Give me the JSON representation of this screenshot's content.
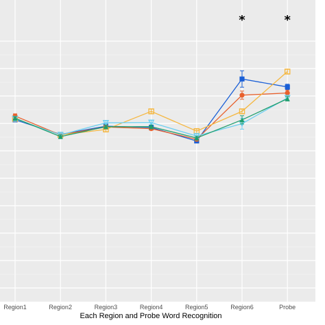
{
  "chart_data": {
    "type": "line",
    "xlabel": "Each Region and Probe Word Recognition",
    "ylabel": "",
    "categories": [
      "Region1",
      "Region2",
      "Region3",
      "Region4",
      "Region5",
      "Region6",
      "Probe"
    ],
    "ylim": [
      0,
      1
    ],
    "y_hidden_ticks": [
      0.1,
      0.2,
      0.3,
      0.4,
      0.5,
      0.6,
      0.7,
      0.8,
      0.9,
      1.0
    ],
    "grid": true,
    "legend": "none",
    "annotations": [
      {
        "category": "Region6",
        "text": "*"
      },
      {
        "category": "Probe",
        "text": "*"
      }
    ],
    "series": [
      {
        "color": "#1a5fd6",
        "marker": "square",
        "values": [
          0.713,
          0.66,
          0.69,
          0.685,
          0.636,
          0.862,
          0.833
        ],
        "errors": [
          0.006,
          0.006,
          0.008,
          0.006,
          0.006,
          0.03,
          0.01
        ]
      },
      {
        "color": "#e8602c",
        "marker": "circle",
        "values": [
          0.727,
          0.658,
          0.687,
          0.681,
          0.642,
          0.803,
          0.811
        ],
        "errors": [
          0.008,
          0.006,
          0.008,
          0.006,
          0.006,
          0.015,
          0.01
        ]
      },
      {
        "color": "#f5b740",
        "marker": "square-open",
        "values": [
          0.717,
          0.658,
          0.678,
          0.744,
          0.672,
          0.744,
          0.889
        ],
        "errors": [
          0.008,
          0.006,
          0.008,
          0.008,
          0.008,
          0.008,
          0.008
        ]
      },
      {
        "color": "#6dcff0",
        "marker": "triangle-down-open",
        "values": [
          0.717,
          0.658,
          0.702,
          0.703,
          0.654,
          0.699,
          0.793
        ],
        "errors": [
          0.008,
          0.006,
          0.008,
          0.008,
          0.008,
          0.02,
          0.01
        ]
      },
      {
        "color": "#1f9e6e",
        "marker": "triangle",
        "values": [
          0.719,
          0.652,
          0.688,
          0.688,
          0.647,
          0.713,
          0.79
        ],
        "errors": [
          0.006,
          0.006,
          0.006,
          0.006,
          0.006,
          0.015,
          0.008
        ]
      }
    ]
  }
}
